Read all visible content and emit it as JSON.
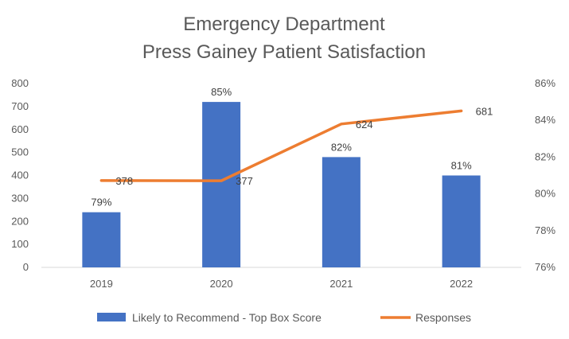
{
  "chart_data": {
    "type": "bar",
    "title": "Emergency Department",
    "subtitle": "Press Gainey Patient Satisfaction",
    "categories": [
      "2019",
      "2020",
      "2021",
      "2022"
    ],
    "series": [
      {
        "name": "Likely to Recommend - Top Box Score",
        "type": "bar",
        "axis": "right",
        "values": [
          79,
          85,
          82,
          81
        ],
        "labels": [
          "79%",
          "85%",
          "82%",
          "81%"
        ],
        "color": "#4472C4"
      },
      {
        "name": "Responses",
        "type": "line",
        "axis": "left",
        "values": [
          378,
          377,
          624,
          681
        ],
        "labels": [
          "378",
          "377",
          "624",
          "681"
        ],
        "color": "#ED7D31"
      }
    ],
    "y_left": {
      "min": 0,
      "max": 800,
      "ticks": [
        "0",
        "100",
        "200",
        "300",
        "400",
        "500",
        "600",
        "700",
        "800"
      ]
    },
    "y_right": {
      "min": 76,
      "max": 86,
      "ticks": [
        "76%",
        "78%",
        "80%",
        "82%",
        "84%",
        "86%"
      ]
    },
    "grid": false,
    "legend_position": "bottom"
  }
}
